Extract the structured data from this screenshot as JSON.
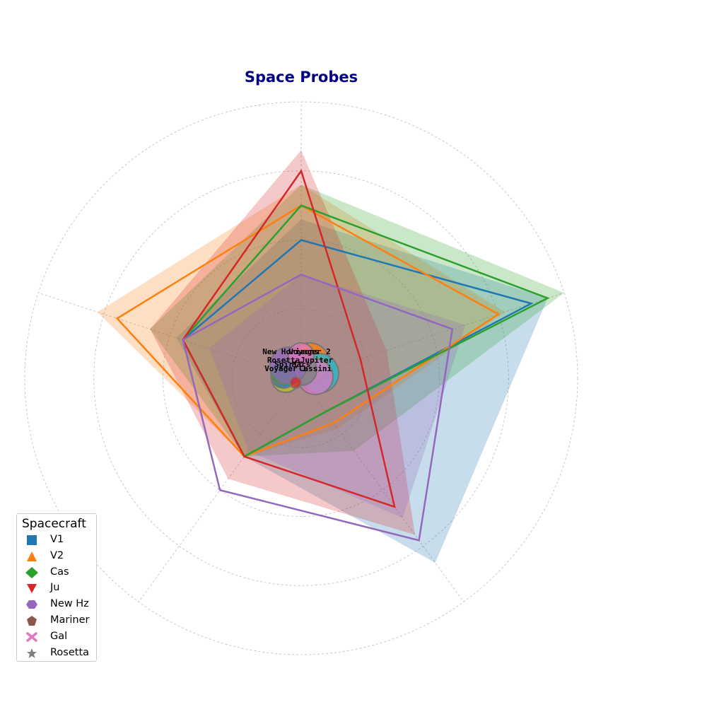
{
  "chart_data": {
    "type": "radar",
    "title": "Space Probes",
    "title_color": "#000080",
    "rmax": 4,
    "axes": 5,
    "grid": true,
    "series_line_colors": [
      "#1f77b4",
      "#ff7f0e",
      "#2ca02c",
      "#d62728",
      "#9467bd"
    ],
    "series_lines": [
      [
        2,
        3.5,
        0.6,
        1.4,
        1.8
      ],
      [
        2.5,
        3,
        0.8,
        1.4,
        2.8
      ],
      [
        2.5,
        3.75,
        0.6,
        1.4,
        1.8
      ],
      [
        3,
        0.9,
        2.3,
        1.4,
        1.8
      ],
      [
        1.5,
        2.3,
        2.9,
        2.0,
        1.8
      ]
    ],
    "fills": [
      {
        "color": "#1f77b4",
        "values": [
          2.3,
          3.75,
          3.3,
          1.4,
          1.9
        ]
      },
      {
        "color": "#ff7f0e",
        "values": [
          2.8,
          3.1,
          0.9,
          1.4,
          3.1
        ]
      },
      {
        "color": "#2ca02c",
        "values": [
          2.8,
          4.0,
          1.3,
          1.4,
          2.3
        ]
      },
      {
        "color": "#d62728",
        "values": [
          3.3,
          1.3,
          2.8,
          1.8,
          2.3
        ]
      },
      {
        "color": "#9467bd",
        "values": [
          1.5,
          2.5,
          2.5,
          1.3,
          1.4
        ]
      }
    ],
    "center_bubbles": [
      {
        "color": "#ff7f0e",
        "dx": 12,
        "dy": -10,
        "r": 28
      },
      {
        "color": "#17becf",
        "dx": 25,
        "dy": 5,
        "r": 28
      },
      {
        "color": "#e377c2",
        "dx": 20,
        "dy": 10,
        "r": 25
      },
      {
        "color": "#7f7f7f",
        "dx": 0,
        "dy": 0,
        "r": 22
      },
      {
        "color": "#bcbd22",
        "dx": -22,
        "dy": 12,
        "r": 20
      },
      {
        "color": "#1f77b4",
        "dx": -25,
        "dy": 8,
        "r": 18
      },
      {
        "color": "#2ca02c",
        "dx": -28,
        "dy": 5,
        "r": 15
      },
      {
        "color": "#9467bd",
        "dx": -18,
        "dy": -6,
        "r": 26
      },
      {
        "color": "#d62728",
        "dx": -8,
        "dy": 18,
        "r": 8
      },
      {
        "color": "#e377c2",
        "dx": 0,
        "dy": -20,
        "r": 18
      }
    ],
    "center_labels": [
      {
        "text": "Voyager 2",
        "dx": 12,
        "dy": -22
      },
      {
        "text": "New Horizons",
        "dx": -15,
        "dy": -22
      },
      {
        "text": "Rosetta",
        "dx": -25,
        "dy": -10
      },
      {
        "text": "Jupiter",
        "dx": 22,
        "dy": -10
      },
      {
        "text": "Spirit",
        "dx": -18,
        "dy": -4
      },
      {
        "text": "Mars",
        "dx": 0,
        "dy": -4
      },
      {
        "text": "Voyager 1",
        "dx": -22,
        "dy": 2
      },
      {
        "text": "Cassini",
        "dx": 20,
        "dy": 2
      }
    ],
    "legend": {
      "title": "Spacecraft",
      "placement": "lower-left",
      "items": [
        {
          "label": "V1",
          "marker": "square",
          "color": "#1f77b4"
        },
        {
          "label": "V2",
          "marker": "triangle-up",
          "color": "#ff7f0e"
        },
        {
          "label": "Cas",
          "marker": "diamond",
          "color": "#2ca02c"
        },
        {
          "label": "Ju",
          "marker": "triangle-down",
          "color": "#d62728"
        },
        {
          "label": "New Hz",
          "marker": "hexagon",
          "color": "#9467bd"
        },
        {
          "label": "Mariner",
          "marker": "pentagon",
          "color": "#8c564b"
        },
        {
          "label": "Gal",
          "marker": "x",
          "color": "#e377c2"
        },
        {
          "label": "Rosetta",
          "marker": "star",
          "color": "#7f7f7f"
        }
      ]
    }
  }
}
